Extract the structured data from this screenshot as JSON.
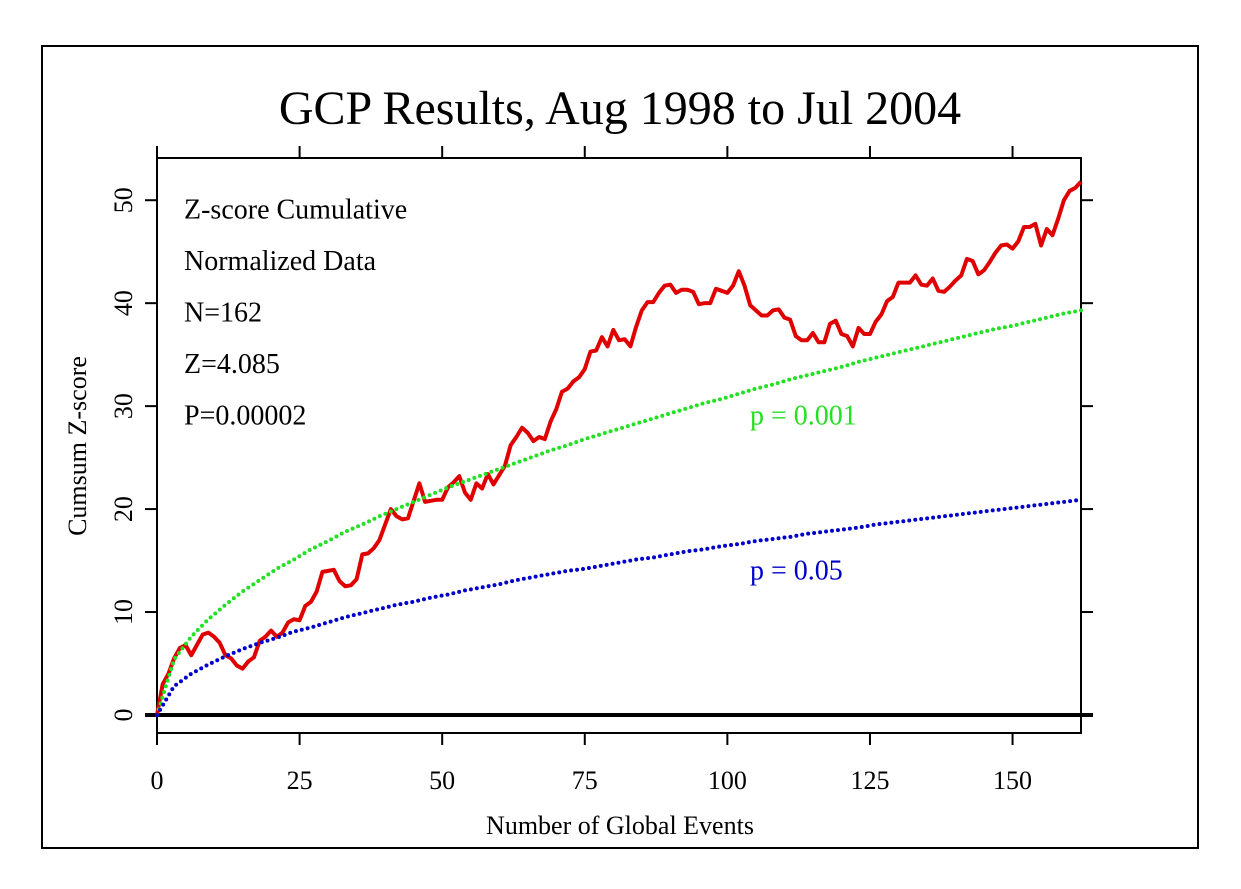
{
  "chart_data": {
    "type": "line",
    "title": "GCP Results, Aug 1998 to Jul 2004",
    "xlabel": "Number of Global Events",
    "ylabel": "Cumsum Z-score",
    "annotations": [
      "Z-score Cumulative",
      "Normalized Data",
      "N=162",
      "Z=4.085",
      "P=0.00002"
    ],
    "xlim": [
      0,
      162
    ],
    "ylim": [
      -1.75,
      54.1
    ],
    "xticks": [
      0,
      25,
      50,
      75,
      100,
      125,
      150
    ],
    "yticks": [
      0,
      10,
      20,
      30,
      40,
      50
    ],
    "zero_line": true,
    "series": [
      {
        "color": "#e00000",
        "style": "solid",
        "x": [
          0,
          1,
          2,
          3,
          4,
          5,
          6,
          7,
          8,
          9,
          10,
          11,
          12,
          13,
          14,
          15,
          16,
          17,
          18,
          19,
          20,
          21,
          22,
          23,
          24,
          25,
          26,
          27,
          28,
          29,
          30,
          31,
          32,
          33,
          34,
          35,
          36,
          37,
          38,
          39,
          40,
          41,
          42,
          43,
          44,
          45,
          46,
          47,
          48,
          49,
          50,
          51,
          52,
          53,
          54,
          55,
          56,
          57,
          58,
          59,
          60,
          61,
          62,
          63,
          64,
          65,
          66,
          67,
          68,
          69,
          70,
          71,
          72,
          73,
          74,
          75,
          76,
          77,
          78,
          79,
          80,
          81,
          82,
          83,
          84,
          85,
          86,
          87,
          88,
          89,
          90,
          91,
          92,
          93,
          94,
          95,
          96,
          97,
          98,
          99,
          100,
          101,
          102,
          103,
          104,
          105,
          106,
          107,
          108,
          109,
          110,
          111,
          112,
          113,
          114,
          115,
          116,
          117,
          118,
          119,
          120,
          121,
          122,
          123,
          124,
          125,
          126,
          127,
          128,
          129,
          130,
          131,
          132,
          133,
          134,
          135,
          136,
          137,
          138,
          139,
          140,
          141,
          142,
          143,
          144,
          145,
          146,
          147,
          148,
          149,
          150,
          151,
          152,
          153,
          154,
          155,
          156,
          157,
          158,
          159,
          160,
          161,
          162
        ],
        "values": [
          0,
          3,
          4,
          5.5,
          6.5,
          6.8,
          5.8,
          6.8,
          7.8,
          8,
          7.6,
          7,
          5.8,
          5.5,
          4.8,
          4.5,
          5.2,
          5.6,
          7.2,
          7.6,
          8.2,
          7.6,
          8,
          9,
          9.3,
          9.2,
          10.6,
          11,
          12,
          13.9,
          14,
          14.1,
          13,
          12.5,
          12.6,
          13.2,
          15.6,
          15.7,
          16.2,
          17,
          18.5,
          20,
          19.3,
          19,
          19.1,
          20.8,
          22.5,
          20.7,
          20.8,
          20.9,
          20.9,
          22.1,
          22.6,
          23.2,
          21.6,
          20.9,
          22.5,
          22,
          23.4,
          22.4,
          23.3,
          24.2,
          26.2,
          27,
          27.9,
          27.4,
          26.6,
          27,
          26.8,
          28.5,
          29.7,
          31.4,
          31.7,
          32.4,
          32.8,
          33.6,
          35.3,
          35.4,
          36.7,
          35.8,
          37.4,
          36.4,
          36.5,
          35.8,
          37.7,
          39.3,
          40.1,
          40.1,
          41,
          41.7,
          41.8,
          41,
          41.3,
          41.3,
          41.1,
          39.9,
          40,
          40,
          41.4,
          41.2,
          41,
          41.7,
          43.1,
          41.7,
          39.8,
          39.3,
          38.8,
          38.8,
          39.3,
          39.4,
          38.6,
          38.4,
          36.8,
          36.4,
          36.4,
          37.1,
          36.2,
          36.2,
          38,
          38.3,
          37,
          36.8,
          35.8,
          37.6,
          37,
          37,
          38.2,
          38.9,
          40.2,
          40.6,
          42,
          42,
          42,
          42.7,
          41.8,
          41.7,
          42.4,
          41.2,
          41.1,
          41.6,
          42.2,
          42.7,
          44.3,
          44.1,
          42.8,
          43.2,
          44,
          44.9,
          45.6,
          45.7,
          45.3,
          46,
          47.4,
          47.4,
          47.7,
          45.6,
          47.2,
          46.6,
          48.2,
          50,
          50.9,
          51.2,
          51.8
        ]
      },
      {
        "name": "p = 0.001",
        "color": "#22e022",
        "style": "dotted",
        "x": [
          0,
          3,
          6,
          9,
          12,
          15,
          18,
          21,
          24,
          27,
          30,
          33,
          36,
          39,
          42,
          45,
          48,
          51,
          54,
          57,
          60,
          63,
          66,
          69,
          72,
          75,
          78,
          81,
          84,
          87,
          90,
          93,
          96,
          99,
          102,
          105,
          108,
          111,
          114,
          117,
          120,
          123,
          126,
          129,
          132,
          135,
          138,
          141,
          144,
          147,
          150,
          153,
          156,
          159,
          162
        ],
        "values": [
          0,
          5.4,
          7.6,
          9.3,
          10.7,
          12.0,
          13.1,
          14.2,
          15.1,
          16.1,
          16.9,
          17.8,
          18.5,
          19.3,
          20.0,
          20.7,
          21.4,
          22.1,
          22.7,
          23.3,
          23.9,
          24.5,
          25.1,
          25.7,
          26.2,
          26.8,
          27.3,
          27.8,
          28.3,
          28.8,
          29.3,
          29.8,
          30.3,
          30.7,
          31.2,
          31.7,
          32.1,
          32.6,
          33.0,
          33.4,
          33.8,
          34.3,
          34.7,
          35.1,
          35.5,
          35.9,
          36.3,
          36.7,
          37.1,
          37.5,
          37.8,
          38.2,
          38.6,
          39.0,
          39.3
        ]
      },
      {
        "name": "p = 0.05",
        "color": "#0000cc",
        "style": "dotted",
        "x": [
          0,
          3,
          6,
          9,
          12,
          15,
          18,
          21,
          24,
          27,
          30,
          33,
          36,
          39,
          42,
          45,
          48,
          51,
          54,
          57,
          60,
          63,
          66,
          69,
          72,
          75,
          78,
          81,
          84,
          87,
          90,
          93,
          96,
          99,
          102,
          105,
          108,
          111,
          114,
          117,
          120,
          123,
          126,
          129,
          132,
          135,
          138,
          141,
          144,
          147,
          150,
          153,
          156,
          159,
          162
        ],
        "values": [
          0,
          2.8,
          4.0,
          4.9,
          5.7,
          6.4,
          7.0,
          7.5,
          8.1,
          8.5,
          9.0,
          9.5,
          9.9,
          10.3,
          10.7,
          11.0,
          11.4,
          11.7,
          12.1,
          12.4,
          12.7,
          13.1,
          13.4,
          13.7,
          14.0,
          14.2,
          14.5,
          14.8,
          15.1,
          15.3,
          15.6,
          15.9,
          16.1,
          16.4,
          16.6,
          16.9,
          17.1,
          17.3,
          17.6,
          17.8,
          18.0,
          18.2,
          18.5,
          18.7,
          18.9,
          19.1,
          19.3,
          19.5,
          19.7,
          19.9,
          20.1,
          20.3,
          20.5,
          20.7,
          20.9
        ]
      }
    ]
  }
}
